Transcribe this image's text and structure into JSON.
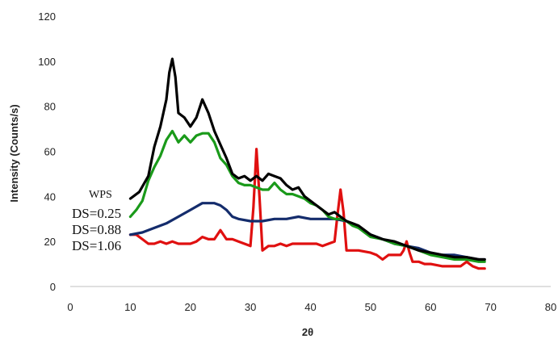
{
  "chart_data": {
    "type": "line",
    "title": "",
    "xlabel": "2θ",
    "ylabel": "Intensity (Counts/s)",
    "xlim": [
      0,
      80
    ],
    "ylim": [
      0,
      120
    ],
    "xticks": [
      "0",
      "10",
      "20",
      "30",
      "40",
      "50",
      "60",
      "70",
      "80"
    ],
    "yticks": [
      "0",
      "20",
      "40",
      "60",
      "80",
      "100",
      "120"
    ],
    "grid": false,
    "legend_placement": "left",
    "series": [
      {
        "name": "WPS",
        "color": "#000000",
        "points": [
          [
            10,
            39
          ],
          [
            11.5,
            42
          ],
          [
            13,
            49
          ],
          [
            14,
            62
          ],
          [
            15,
            71
          ],
          [
            16,
            83
          ],
          [
            16.5,
            95
          ],
          [
            17,
            101
          ],
          [
            17.5,
            93
          ],
          [
            18,
            77
          ],
          [
            19,
            75
          ],
          [
            20,
            71
          ],
          [
            21,
            75
          ],
          [
            22,
            83
          ],
          [
            23,
            77
          ],
          [
            24,
            69
          ],
          [
            25,
            63
          ],
          [
            26,
            57
          ],
          [
            27,
            50
          ],
          [
            28,
            48
          ],
          [
            29,
            49
          ],
          [
            30,
            47
          ],
          [
            31,
            49
          ],
          [
            32,
            47
          ],
          [
            33,
            50
          ],
          [
            34,
            49
          ],
          [
            35,
            48
          ],
          [
            36,
            45
          ],
          [
            37,
            43
          ],
          [
            38,
            44
          ],
          [
            39,
            40
          ],
          [
            40,
            38
          ],
          [
            41,
            36
          ],
          [
            42,
            34
          ],
          [
            43,
            32
          ],
          [
            44,
            33
          ],
          [
            45,
            31
          ],
          [
            46,
            29
          ],
          [
            47,
            28
          ],
          [
            48,
            27
          ],
          [
            49,
            25
          ],
          [
            50,
            23
          ],
          [
            52,
            21
          ],
          [
            54,
            20
          ],
          [
            56,
            18
          ],
          [
            58,
            16
          ],
          [
            60,
            15
          ],
          [
            62,
            14
          ],
          [
            64,
            13
          ],
          [
            66,
            13
          ],
          [
            68,
            12
          ],
          [
            69,
            12
          ]
        ]
      },
      {
        "name": "DS=0.25",
        "color": "#1a9a1a",
        "points": [
          [
            10,
            31
          ],
          [
            11,
            34
          ],
          [
            12,
            38
          ],
          [
            13,
            47
          ],
          [
            14,
            53
          ],
          [
            15,
            58
          ],
          [
            16,
            65
          ],
          [
            17,
            69
          ],
          [
            18,
            64
          ],
          [
            19,
            67
          ],
          [
            20,
            64
          ],
          [
            21,
            67
          ],
          [
            22,
            68
          ],
          [
            23,
            68
          ],
          [
            24,
            64
          ],
          [
            25,
            57
          ],
          [
            26,
            54
          ],
          [
            27,
            49
          ],
          [
            28,
            46
          ],
          [
            29,
            45
          ],
          [
            30,
            45
          ],
          [
            31,
            44
          ],
          [
            32,
            43
          ],
          [
            33,
            43
          ],
          [
            34,
            46
          ],
          [
            35,
            43
          ],
          [
            36,
            41
          ],
          [
            37,
            41
          ],
          [
            38,
            40
          ],
          [
            39,
            39
          ],
          [
            40,
            37
          ],
          [
            41,
            36
          ],
          [
            42,
            34
          ],
          [
            43,
            31
          ],
          [
            44,
            30
          ],
          [
            45,
            30
          ],
          [
            46,
            29
          ],
          [
            47,
            27
          ],
          [
            48,
            26
          ],
          [
            49,
            24
          ],
          [
            50,
            22
          ],
          [
            52,
            21
          ],
          [
            54,
            19
          ],
          [
            56,
            18
          ],
          [
            58,
            16
          ],
          [
            60,
            14
          ],
          [
            62,
            13
          ],
          [
            64,
            12
          ],
          [
            66,
            12
          ],
          [
            68,
            11
          ],
          [
            69,
            11
          ]
        ]
      },
      {
        "name": "DS=0.88",
        "color": "#142c6c",
        "points": [
          [
            10,
            23
          ],
          [
            12,
            24
          ],
          [
            14,
            26
          ],
          [
            16,
            28
          ],
          [
            18,
            31
          ],
          [
            20,
            34
          ],
          [
            22,
            37
          ],
          [
            24,
            37
          ],
          [
            25,
            36
          ],
          [
            26,
            34
          ],
          [
            27,
            31
          ],
          [
            28,
            30
          ],
          [
            30,
            29
          ],
          [
            32,
            29
          ],
          [
            34,
            30
          ],
          [
            36,
            30
          ],
          [
            38,
            31
          ],
          [
            40,
            30
          ],
          [
            42,
            30
          ],
          [
            44,
            30
          ],
          [
            46,
            29
          ],
          [
            48,
            26
          ],
          [
            50,
            23
          ],
          [
            52,
            21
          ],
          [
            54,
            19
          ],
          [
            56,
            18
          ],
          [
            58,
            17
          ],
          [
            60,
            15
          ],
          [
            62,
            14
          ],
          [
            64,
            14
          ],
          [
            66,
            13
          ],
          [
            68,
            12
          ],
          [
            69,
            12
          ]
        ]
      },
      {
        "name": "DS=1.06",
        "color": "#e01010",
        "points": [
          [
            10,
            23
          ],
          [
            11,
            23
          ],
          [
            12,
            21
          ],
          [
            13,
            19
          ],
          [
            14,
            19
          ],
          [
            15,
            20
          ],
          [
            16,
            19
          ],
          [
            17,
            20
          ],
          [
            18,
            19
          ],
          [
            19,
            19
          ],
          [
            20,
            19
          ],
          [
            21,
            20
          ],
          [
            22,
            22
          ],
          [
            23,
            21
          ],
          [
            24,
            21
          ],
          [
            25,
            25
          ],
          [
            26,
            21
          ],
          [
            27,
            21
          ],
          [
            28,
            20
          ],
          [
            29,
            19
          ],
          [
            30,
            18
          ],
          [
            30.5,
            35
          ],
          [
            31,
            61
          ],
          [
            31.5,
            40
          ],
          [
            32,
            16
          ],
          [
            33,
            18
          ],
          [
            34,
            18
          ],
          [
            35,
            19
          ],
          [
            36,
            18
          ],
          [
            37,
            19
          ],
          [
            38,
            19
          ],
          [
            39,
            19
          ],
          [
            40,
            19
          ],
          [
            41,
            19
          ],
          [
            42,
            18
          ],
          [
            43,
            19
          ],
          [
            44,
            20
          ],
          [
            44.5,
            32
          ],
          [
            45,
            43
          ],
          [
            45.5,
            33
          ],
          [
            46,
            16
          ],
          [
            48,
            16
          ],
          [
            50,
            15
          ],
          [
            51,
            14
          ],
          [
            52,
            12
          ],
          [
            53,
            14
          ],
          [
            54,
            14
          ],
          [
            55,
            14
          ],
          [
            55.5,
            16
          ],
          [
            56,
            20
          ],
          [
            56.5,
            15
          ],
          [
            57,
            11
          ],
          [
            58,
            11
          ],
          [
            59,
            10
          ],
          [
            60,
            10
          ],
          [
            62,
            9
          ],
          [
            64,
            9
          ],
          [
            65,
            9
          ],
          [
            66,
            11
          ],
          [
            67,
            9
          ],
          [
            68,
            8
          ],
          [
            69,
            8
          ]
        ]
      }
    ]
  }
}
